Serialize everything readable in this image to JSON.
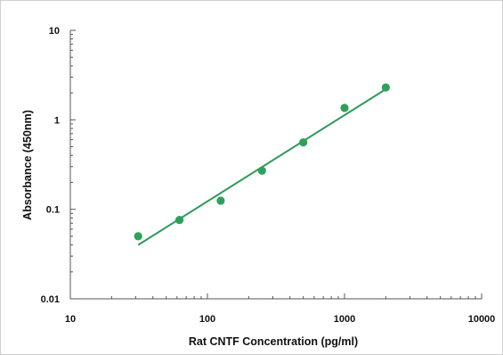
{
  "chart_data": {
    "type": "scatter",
    "title": "",
    "xlabel": "Rat CNTF Concentration (pg/ml)",
    "ylabel": "Absorbance (450nm)",
    "xscale": "log",
    "yscale": "log",
    "xlim": [
      10,
      10000
    ],
    "ylim": [
      0.01,
      10
    ],
    "x_tick_labels": [
      "10",
      "100",
      "1000",
      "10000"
    ],
    "y_tick_labels": [
      "0.01",
      "0.1",
      "1",
      "10"
    ],
    "grid": false,
    "legend": "none",
    "series": [
      {
        "x": [
          31.25,
          62.5,
          125,
          250,
          500,
          1000,
          2000
        ],
        "y": [
          0.05,
          0.076,
          0.125,
          0.27,
          0.56,
          1.36,
          2.3
        ]
      }
    ],
    "trendline": {
      "x": [
        31.25,
        2000
      ],
      "y": [
        0.04,
        2.2
      ]
    },
    "colors": {
      "points": "#2ea05a",
      "trendline": "#2e9a5c",
      "axis": "#555555",
      "text": "#111111"
    }
  }
}
